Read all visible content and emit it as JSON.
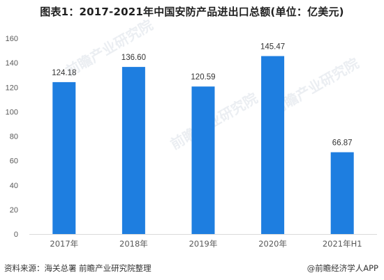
{
  "title": "图表1：2017-2021年中国安防产品进出口总额(单位：亿美元)",
  "watermark_text": "前瞻产业研究院",
  "footer": {
    "source": "资料来源：海关总署 前瞻产业研究院整理",
    "brand": "@前瞻经济学人APP"
  },
  "colors": {
    "bar": "#1e7ee0",
    "grid": "#e6e6e6",
    "axis_text": "#595959",
    "label_text": "#333333"
  },
  "chart_data": {
    "type": "bar",
    "categories": [
      "2017年",
      "2018年",
      "2019年",
      "2020年",
      "2021年H1"
    ],
    "values": [
      124.18,
      136.6,
      120.59,
      145.47,
      66.87
    ],
    "value_labels": [
      "124.18",
      "136.60",
      "120.59",
      "145.47",
      "66.87"
    ],
    "ylim": [
      0,
      160
    ],
    "yticks": [
      0,
      20,
      40,
      60,
      80,
      100,
      120,
      140,
      160
    ],
    "grid": false
  }
}
